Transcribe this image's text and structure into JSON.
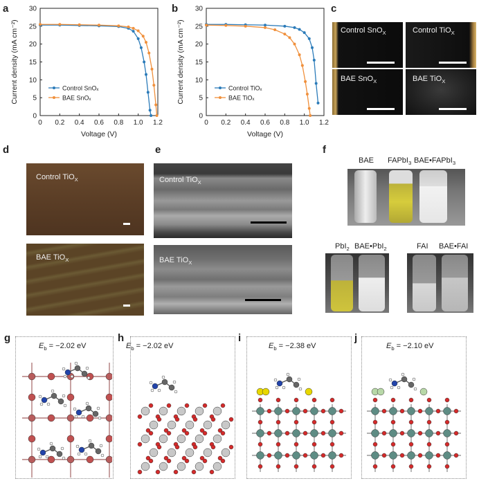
{
  "labels": {
    "a": "a",
    "b": "b",
    "c": "c",
    "d": "d",
    "e": "e",
    "f": "f",
    "g": "g",
    "h": "h",
    "i": "i",
    "j": "j"
  },
  "chart_data": [
    {
      "type": "line",
      "panel": "a",
      "xlabel": "Voltage (V)",
      "ylabel": "Current density (mA cm⁻²)",
      "xlim": [
        0,
        1.2
      ],
      "ylim": [
        0,
        30
      ],
      "xticks": [
        "0",
        "0.2",
        "0.4",
        "0.6",
        "0.8",
        "1.0",
        "1.2"
      ],
      "yticks": [
        "0",
        "5",
        "10",
        "15",
        "20",
        "25",
        "30"
      ],
      "legend_position": "bottom-left",
      "series": [
        {
          "name": "Control SnOₓ",
          "color": "#2b7bb9",
          "x": [
            0,
            0.2,
            0.4,
            0.6,
            0.8,
            0.9,
            0.95,
            1.0,
            1.03,
            1.06,
            1.08,
            1.1,
            1.12,
            1.13
          ],
          "y": [
            25.3,
            25.3,
            25.2,
            25.1,
            24.9,
            24.4,
            23.6,
            21.5,
            19.0,
            15.0,
            11.5,
            6.5,
            1.5,
            0
          ]
        },
        {
          "name": "BAE SnOₓ",
          "color": "#f0903c",
          "x": [
            0,
            0.2,
            0.4,
            0.6,
            0.8,
            0.9,
            0.95,
            1.0,
            1.05,
            1.08,
            1.11,
            1.14,
            1.16,
            1.18,
            1.19
          ],
          "y": [
            25.5,
            25.5,
            25.4,
            25.3,
            25.1,
            24.8,
            24.4,
            23.7,
            22.2,
            20.5,
            17.5,
            13.0,
            8.5,
            3.0,
            0
          ]
        }
      ]
    },
    {
      "type": "line",
      "panel": "b",
      "xlabel": "Voltage (V)",
      "ylabel": "Current density (mA cm⁻²)",
      "xlim": [
        0,
        1.2
      ],
      "ylim": [
        0,
        30
      ],
      "xticks": [
        "0",
        "0.2",
        "0.4",
        "0.6",
        "0.8",
        "1.0",
        "1.2"
      ],
      "yticks": [
        "0",
        "5",
        "10",
        "15",
        "20",
        "25",
        "30"
      ],
      "legend_position": "bottom-left",
      "series": [
        {
          "name": "Control TiOₓ",
          "color": "#2b7bb9",
          "x": [
            0,
            0.2,
            0.4,
            0.6,
            0.8,
            0.9,
            0.95,
            1.0,
            1.05,
            1.08,
            1.1,
            1.12,
            1.14
          ],
          "y": [
            25.5,
            25.5,
            25.4,
            25.3,
            25.0,
            24.6,
            24.1,
            23.2,
            21.5,
            19.0,
            15.5,
            9.0,
            3.5
          ]
        },
        {
          "name": "BAE TiOₓ",
          "color": "#f0903c",
          "x": [
            0,
            0.2,
            0.4,
            0.6,
            0.7,
            0.8,
            0.85,
            0.9,
            0.95,
            0.98,
            1.01,
            1.03,
            1.05,
            1.06
          ],
          "y": [
            25.3,
            25.2,
            25.0,
            24.6,
            24.0,
            22.8,
            21.8,
            20.0,
            17.0,
            14.0,
            9.5,
            6.0,
            2.0,
            0
          ]
        }
      ]
    }
  ],
  "panel_c": {
    "tiles": [
      {
        "label_main": "Control SnO",
        "label_sub": "X"
      },
      {
        "label_main": "Control TiO",
        "label_sub": "X"
      },
      {
        "label_main": "BAE SnO",
        "label_sub": "X"
      },
      {
        "label_main": "BAE TiO",
        "label_sub": "X"
      }
    ]
  },
  "panel_d": {
    "tiles": [
      {
        "label_main": "Control TiO",
        "label_sub": "X"
      },
      {
        "label_main": "BAE TiO",
        "label_sub": "X"
      }
    ]
  },
  "panel_e": {
    "tiles": [
      {
        "label_main": "Control TiO",
        "label_sub": "X"
      },
      {
        "label_main": "BAE TiO",
        "label_sub": "X"
      }
    ]
  },
  "panel_f": {
    "top": [
      {
        "main": "BAE",
        "sub": ""
      },
      {
        "main": "FAPbI",
        "sub": "3"
      },
      {
        "main": "BAE•FAPbI",
        "sub": "3"
      }
    ],
    "bottom_left": [
      {
        "main": "PbI",
        "sub": "2"
      },
      {
        "main": "BAE•PbI",
        "sub": "2"
      }
    ],
    "bottom_right": [
      {
        "main": "FAI",
        "sub": ""
      },
      {
        "main": "BAE•FAI",
        "sub": ""
      }
    ]
  },
  "panel_binding": [
    {
      "panel": "g",
      "E_sym": "E",
      "E_sub": "b",
      "value": " = −2.02 eV"
    },
    {
      "panel": "h",
      "E_sym": "E",
      "E_sub": "b",
      "value": " = −2.02 eV"
    },
    {
      "panel": "i",
      "E_sym": "E",
      "E_sub": "b",
      "value": " = −2.38 eV"
    },
    {
      "panel": "j",
      "E_sym": "E",
      "E_sub": "b",
      "value": " = −2.10 eV"
    }
  ],
  "colors": {
    "control": "#2b7bb9",
    "bae": "#f0903c",
    "pb": "#b85c5c",
    "ti": "#5e8c84",
    "o": "#d42a2a",
    "n": "#2244aa",
    "i": "#e8d800",
    "sn": "#c8c8c8"
  }
}
